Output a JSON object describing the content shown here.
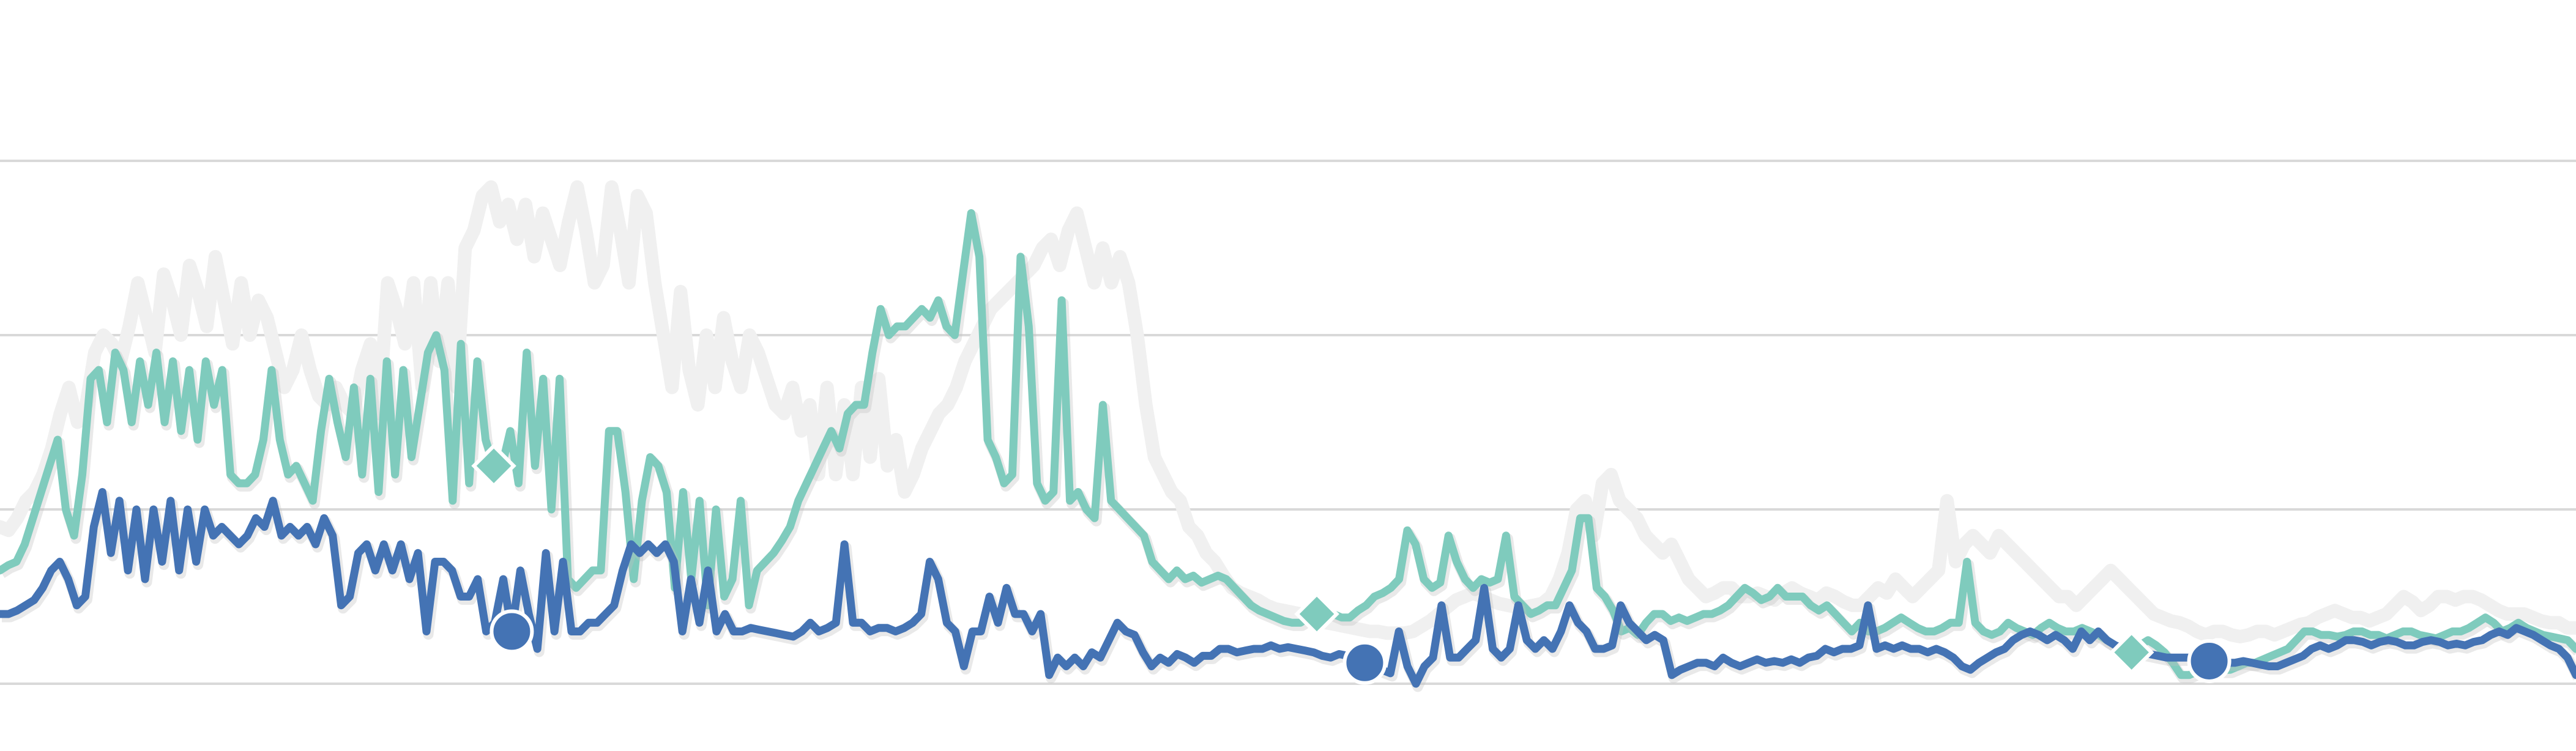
{
  "chart_data": {
    "type": "line",
    "title": "",
    "xlabel": "",
    "ylabel": "",
    "grid": true,
    "legend": "none",
    "ylim": [
      0,
      3
    ],
    "gridlines": [
      0,
      1,
      2,
      3
    ],
    "series": [
      {
        "key": "gray",
        "color": "#f0f0f0",
        "marker": "none",
        "values": [
          0.9,
          0.88,
          0.95,
          1.05,
          1.1,
          1.2,
          1.35,
          1.55,
          1.7,
          1.5,
          1.6,
          1.9,
          2.0,
          1.95,
          1.85,
          2.05,
          2.3,
          2.1,
          1.9,
          2.35,
          2.2,
          2.0,
          2.4,
          2.25,
          2.05,
          2.45,
          2.2,
          1.95,
          2.3,
          2.0,
          2.2,
          2.1,
          1.9,
          1.7,
          1.8,
          2.0,
          1.8,
          1.65,
          1.6,
          1.7,
          1.6,
          1.55,
          1.8,
          1.95,
          1.55,
          2.3,
          2.15,
          1.95,
          2.3,
          1.7,
          2.3,
          1.85,
          2.3,
          1.7,
          2.5,
          2.6,
          2.8,
          2.85,
          2.65,
          2.75,
          2.55,
          2.75,
          2.45,
          2.7,
          2.55,
          2.4,
          2.65,
          2.85,
          2.6,
          2.3,
          2.4,
          2.85,
          2.6,
          2.3,
          2.8,
          2.7,
          2.3,
          2.0,
          1.7,
          2.25,
          1.8,
          1.6,
          2.0,
          1.7,
          2.1,
          1.85,
          1.7,
          2.0,
          1.9,
          1.75,
          1.6,
          1.55,
          1.7,
          1.45,
          1.6,
          1.2,
          1.7,
          1.2,
          1.6,
          1.2,
          1.7,
          1.3,
          1.75,
          1.25,
          1.4,
          1.1,
          1.2,
          1.35,
          1.45,
          1.55,
          1.6,
          1.7,
          1.85,
          1.95,
          2.05,
          2.15,
          2.2,
          2.25,
          2.3,
          2.35,
          2.4,
          2.5,
          2.55,
          2.4,
          2.6,
          2.7,
          2.5,
          2.3,
          2.5,
          2.3,
          2.45,
          2.3,
          2.0,
          1.6,
          1.3,
          1.2,
          1.1,
          1.05,
          0.9,
          0.85,
          0.75,
          0.7,
          0.62,
          0.55,
          0.52,
          0.5,
          0.48,
          0.45,
          0.43,
          0.42,
          0.41,
          0.4,
          0.38,
          0.36,
          0.35,
          0.34,
          0.33,
          0.32,
          0.31,
          0.3,
          0.3,
          0.29,
          0.29,
          0.29,
          0.3,
          0.33,
          0.36,
          0.4,
          0.44,
          0.48,
          0.5,
          0.52,
          0.5,
          0.48,
          0.46,
          0.45,
          0.44,
          0.44,
          0.45,
          0.46,
          0.5,
          0.6,
          0.75,
          1.0,
          1.05,
          0.85,
          1.15,
          1.2,
          1.05,
          1.0,
          0.95,
          0.85,
          0.8,
          0.75,
          0.8,
          0.7,
          0.6,
          0.55,
          0.5,
          0.52,
          0.55,
          0.55,
          0.5,
          0.5,
          0.52,
          0.5,
          0.48,
          0.52,
          0.55,
          0.52,
          0.5,
          0.48,
          0.52,
          0.5,
          0.47,
          0.45,
          0.45,
          0.5,
          0.55,
          0.52,
          0.6,
          0.55,
          0.5,
          0.55,
          0.6,
          0.65,
          1.05,
          0.7,
          0.8,
          0.85,
          0.8,
          0.75,
          0.85,
          0.8,
          0.75,
          0.7,
          0.65,
          0.6,
          0.55,
          0.5,
          0.5,
          0.45,
          0.5,
          0.55,
          0.6,
          0.65,
          0.6,
          0.55,
          0.5,
          0.45,
          0.4,
          0.38,
          0.36,
          0.35,
          0.33,
          0.3,
          0.28,
          0.3,
          0.3,
          0.28,
          0.27,
          0.28,
          0.3,
          0.3,
          0.28,
          0.3,
          0.32,
          0.34,
          0.35,
          0.38,
          0.4,
          0.42,
          0.4,
          0.38,
          0.38,
          0.36,
          0.38,
          0.4,
          0.45,
          0.5,
          0.47,
          0.42,
          0.45,
          0.5,
          0.5,
          0.48,
          0.5,
          0.5,
          0.48,
          0.45,
          0.42,
          0.4,
          0.4,
          0.4,
          0.38,
          0.36,
          0.35,
          0.35,
          0.32,
          0.32
        ]
      },
      {
        "key": "teal",
        "color": "#7fcbbd",
        "marker": "diamond",
        "markers": [
          60,
          160,
          259,
          359,
          452
        ],
        "values": [
          0.65,
          0.68,
          0.7,
          0.8,
          0.95,
          1.1,
          1.25,
          1.4,
          1.0,
          0.85,
          1.2,
          1.75,
          1.8,
          1.5,
          1.9,
          1.8,
          1.5,
          1.85,
          1.6,
          1.9,
          1.5,
          1.85,
          1.45,
          1.8,
          1.4,
          1.85,
          1.6,
          1.8,
          1.2,
          1.15,
          1.15,
          1.2,
          1.4,
          1.8,
          1.4,
          1.2,
          1.25,
          1.15,
          1.05,
          1.45,
          1.75,
          1.5,
          1.3,
          1.7,
          1.2,
          1.75,
          1.1,
          1.85,
          1.2,
          1.8,
          1.3,
          1.6,
          1.9,
          2.0,
          1.8,
          1.05,
          1.95,
          1.15,
          1.85,
          1.4,
          1.25,
          1.25,
          1.45,
          1.15,
          1.9,
          1.25,
          1.75,
          1.0,
          1.75,
          0.6,
          0.55,
          0.6,
          0.65,
          0.65,
          1.45,
          1.45,
          1.1,
          0.6,
          1.05,
          1.3,
          1.25,
          1.1,
          0.55,
          1.1,
          0.6,
          1.05,
          0.45,
          1.0,
          0.5,
          0.6,
          1.05,
          0.45,
          0.65,
          0.7,
          0.75,
          0.82,
          0.9,
          1.05,
          1.15,
          1.25,
          1.35,
          1.45,
          1.35,
          1.55,
          1.6,
          1.6,
          1.9,
          2.15,
          2.0,
          2.05,
          2.05,
          2.1,
          2.15,
          2.1,
          2.2,
          2.05,
          2.0,
          2.35,
          2.7,
          2.45,
          1.4,
          1.3,
          1.15,
          1.2,
          2.45,
          2.05,
          1.15,
          1.05,
          1.1,
          2.2,
          1.05,
          1.1,
          1.0,
          0.95,
          1.6,
          1.05,
          1.0,
          0.95,
          0.9,
          0.85,
          0.7,
          0.65,
          0.6,
          0.65,
          0.6,
          0.62,
          0.58,
          0.6,
          0.62,
          0.6,
          0.55,
          0.5,
          0.45,
          0.42,
          0.4,
          0.38,
          0.36,
          0.35,
          0.35,
          0.38,
          0.4,
          0.42,
          0.4,
          0.38,
          0.38,
          0.42,
          0.45,
          0.5,
          0.52,
          0.55,
          0.6,
          0.88,
          0.8,
          0.6,
          0.55,
          0.58,
          0.85,
          0.7,
          0.6,
          0.55,
          0.6,
          0.58,
          0.6,
          0.85,
          0.5,
          0.45,
          0.4,
          0.42,
          0.45,
          0.45,
          0.55,
          0.65,
          0.95,
          0.95,
          0.55,
          0.5,
          0.42,
          0.3,
          0.32,
          0.28,
          0.35,
          0.4,
          0.4,
          0.36,
          0.38,
          0.36,
          0.38,
          0.4,
          0.4,
          0.42,
          0.45,
          0.5,
          0.55,
          0.52,
          0.48,
          0.5,
          0.55,
          0.5,
          0.5,
          0.5,
          0.45,
          0.42,
          0.45,
          0.4,
          0.35,
          0.3,
          0.35,
          0.3,
          0.3,
          0.32,
          0.35,
          0.38,
          0.35,
          0.32,
          0.3,
          0.3,
          0.32,
          0.35,
          0.35,
          0.7,
          0.35,
          0.3,
          0.28,
          0.3,
          0.35,
          0.32,
          0.3,
          0.28,
          0.32,
          0.35,
          0.32,
          0.3,
          0.3,
          0.32,
          0.3,
          0.28,
          0.25,
          0.22,
          0.2,
          0.18,
          0.22,
          0.25,
          0.22,
          0.18,
          0.12,
          0.05,
          0.05,
          0.07,
          0.1,
          0.09,
          0.08,
          0.08,
          0.1,
          0.12,
          0.12,
          0.14,
          0.16,
          0.18,
          0.2,
          0.25,
          0.3,
          0.3,
          0.28,
          0.28,
          0.27,
          0.28,
          0.3,
          0.3,
          0.28,
          0.28,
          0.26,
          0.28,
          0.3,
          0.3,
          0.28,
          0.27,
          0.26,
          0.28,
          0.3,
          0.3,
          0.32,
          0.35,
          0.38,
          0.35,
          0.3,
          0.32,
          0.35,
          0.32,
          0.3,
          0.28,
          0.27,
          0.26,
          0.25,
          0.2
        ]
      },
      {
        "key": "blue",
        "color": "#4473b4",
        "marker": "circle",
        "markers": [
          60,
          160,
          259,
          359,
          452
        ],
        "values": [
          0.4,
          0.4,
          0.42,
          0.45,
          0.48,
          0.55,
          0.65,
          0.7,
          0.6,
          0.45,
          0.5,
          0.9,
          1.1,
          0.75,
          1.05,
          0.65,
          1.0,
          0.6,
          1.0,
          0.7,
          1.05,
          0.65,
          1.0,
          0.7,
          1.0,
          0.85,
          0.9,
          0.85,
          0.8,
          0.85,
          0.95,
          0.9,
          1.05,
          0.85,
          0.9,
          0.85,
          0.9,
          0.8,
          0.95,
          0.85,
          0.45,
          0.5,
          0.75,
          0.8,
          0.65,
          0.8,
          0.65,
          0.8,
          0.6,
          0.75,
          0.3,
          0.7,
          0.7,
          0.65,
          0.5,
          0.5,
          0.6,
          0.3,
          0.35,
          0.6,
          0.3,
          0.65,
          0.4,
          0.2,
          0.75,
          0.3,
          0.7,
          0.3,
          0.3,
          0.35,
          0.35,
          0.4,
          0.45,
          0.65,
          0.8,
          0.75,
          0.8,
          0.75,
          0.8,
          0.7,
          0.3,
          0.6,
          0.35,
          0.65,
          0.3,
          0.4,
          0.3,
          0.3,
          0.32,
          0.31,
          0.3,
          0.29,
          0.28,
          0.27,
          0.3,
          0.35,
          0.3,
          0.32,
          0.35,
          0.8,
          0.35,
          0.35,
          0.3,
          0.32,
          0.32,
          0.3,
          0.32,
          0.35,
          0.4,
          0.7,
          0.6,
          0.35,
          0.3,
          0.1,
          0.3,
          0.3,
          0.5,
          0.35,
          0.55,
          0.4,
          0.4,
          0.3,
          0.4,
          0.05,
          0.15,
          0.1,
          0.15,
          0.1,
          0.18,
          0.15,
          0.25,
          0.35,
          0.3,
          0.28,
          0.18,
          0.1,
          0.15,
          0.12,
          0.17,
          0.15,
          0.12,
          0.16,
          0.16,
          0.2,
          0.2,
          0.18,
          0.19,
          0.2,
          0.2,
          0.22,
          0.2,
          0.21,
          0.2,
          0.19,
          0.18,
          0.16,
          0.15,
          0.17,
          0.16,
          0.14,
          0.12,
          0.1,
          0.08,
          0.06,
          0.3,
          0.1,
          0.0,
          0.1,
          0.15,
          0.45,
          0.15,
          0.15,
          0.2,
          0.25,
          0.55,
          0.2,
          0.15,
          0.2,
          0.45,
          0.25,
          0.2,
          0.25,
          0.2,
          0.3,
          0.45,
          0.35,
          0.3,
          0.2,
          0.2,
          0.22,
          0.45,
          0.35,
          0.3,
          0.25,
          0.28,
          0.25,
          0.05,
          0.08,
          0.1,
          0.12,
          0.12,
          0.1,
          0.15,
          0.12,
          0.1,
          0.12,
          0.14,
          0.12,
          0.13,
          0.12,
          0.14,
          0.12,
          0.15,
          0.16,
          0.2,
          0.18,
          0.2,
          0.2,
          0.22,
          0.45,
          0.2,
          0.22,
          0.2,
          0.22,
          0.2,
          0.2,
          0.18,
          0.2,
          0.18,
          0.15,
          0.1,
          0.08,
          0.12,
          0.15,
          0.18,
          0.2,
          0.25,
          0.28,
          0.3,
          0.28,
          0.25,
          0.28,
          0.25,
          0.2,
          0.3,
          0.25,
          0.3,
          0.25,
          0.22,
          0.2,
          0.2,
          0.18,
          0.17,
          0.16,
          0.15,
          0.15,
          0.15,
          0.15,
          0.14,
          0.13,
          0.12,
          0.12,
          0.12,
          0.13,
          0.12,
          0.11,
          0.1,
          0.1,
          0.12,
          0.14,
          0.16,
          0.2,
          0.22,
          0.2,
          0.22,
          0.25,
          0.25,
          0.24,
          0.22,
          0.24,
          0.25,
          0.24,
          0.22,
          0.22,
          0.24,
          0.25,
          0.24,
          0.22,
          0.23,
          0.22,
          0.24,
          0.25,
          0.28,
          0.3,
          0.28,
          0.32,
          0.3,
          0.28,
          0.25,
          0.22,
          0.2,
          0.15,
          0.05
        ]
      }
    ]
  }
}
